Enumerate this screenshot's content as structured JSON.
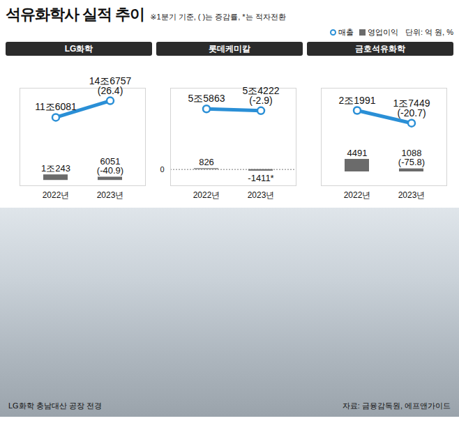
{
  "title": "석유화학사 실적 추이",
  "subtitle": "※1분기 기준, ( )는 증감률, *는 적자전환",
  "unit": "단위: 억 원, %",
  "source": "자료: 금융감독원, 에프앤가이드",
  "photo_caption": "LG화학 충남대산 공장 전경",
  "chart_data": [
    {
      "type": "line",
      "title": "LG화학",
      "categories": [
        "2022년",
        "2023년"
      ],
      "series": [
        {
          "name": "매출",
          "type": "line",
          "color": "#2a8fd6",
          "marker": "circle",
          "values": [
            116081,
            146757
          ],
          "value_labels": [
            "11조6081",
            "14조6757"
          ],
          "change_labels": [
            null,
            "(26.4)"
          ]
        },
        {
          "name": "영업이익",
          "type": "bar",
          "color": "#6b6b6b",
          "values": [
            10243,
            6051
          ],
          "value_labels": [
            "1조243",
            "6051"
          ],
          "change_labels": [
            null,
            "(-40.9)"
          ]
        }
      ],
      "ylim": [
        -10000,
        170000
      ],
      "yticks": [],
      "grid": false,
      "tick_labels": "x",
      "data_labels": true,
      "legend": "top"
    },
    {
      "type": "line",
      "title": "롯데케미칼",
      "categories": [
        "2022년",
        "2023년"
      ],
      "series": [
        {
          "name": "매출",
          "type": "line",
          "color": "#2a8fd6",
          "marker": "circle",
          "values": [
            55863,
            54222
          ],
          "value_labels": [
            "5조5863",
            "5조4222"
          ],
          "change_labels": [
            null,
            "(-2.9)"
          ]
        },
        {
          "name": "영업이익",
          "type": "bar",
          "color": "#6b6b6b",
          "values": [
            826,
            -1411
          ],
          "value_labels": [
            "826",
            "-1411*"
          ],
          "change_labels": [
            null,
            null
          ]
        }
      ],
      "ylim": [
        -15000,
        75000
      ],
      "yticks": [
        0
      ],
      "grid": true,
      "data_labels": true,
      "legend": "top"
    },
    {
      "type": "line",
      "title": "금호석유화학",
      "categories": [
        "2022년",
        "2023년"
      ],
      "series": [
        {
          "name": "매출",
          "type": "line",
          "color": "#2a8fd6",
          "marker": "circle",
          "values": [
            21991,
            17449
          ],
          "value_labels": [
            "2조1991",
            "1조7449"
          ],
          "change_labels": [
            null,
            "(-20.7)"
          ]
        },
        {
          "name": "영업이익",
          "type": "bar",
          "color": "#6b6b6b",
          "values": [
            4491,
            1088
          ],
          "value_labels": [
            "4491",
            "1088"
          ],
          "change_labels": [
            null,
            "(-75.8)"
          ]
        }
      ],
      "ylim": [
        -5000,
        30000
      ],
      "yticks": [],
      "grid": false,
      "tick_labels": "x",
      "data_labels": true,
      "legend": "top"
    }
  ]
}
